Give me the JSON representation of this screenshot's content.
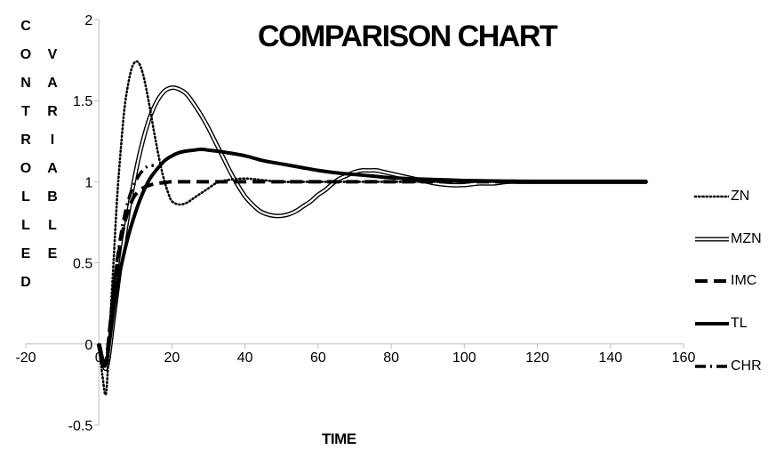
{
  "chart_data": {
    "type": "line",
    "title": "COMPARISON CHART",
    "xlabel": "TIME",
    "ylabel_parts": [
      "CONTROLLED",
      "VARIABLE"
    ],
    "xlim": [
      -20,
      160
    ],
    "ylim": [
      -0.5,
      2
    ],
    "x_ticks": [
      "-20",
      "0",
      "20",
      "40",
      "60",
      "80",
      "100",
      "120",
      "140",
      "160"
    ],
    "y_ticks": [
      "-0.5",
      "0",
      "0.5",
      "1",
      "1.5",
      "2"
    ],
    "grid": false,
    "legend_position": "right",
    "series": [
      {
        "name": "ZN",
        "style": "dotted",
        "x": [
          0,
          1,
          2,
          3,
          4,
          5,
          6,
          7,
          8,
          9,
          10,
          11,
          12,
          13,
          14,
          15,
          16,
          17,
          18,
          19,
          20,
          22,
          24,
          26,
          28,
          30,
          32,
          35,
          40,
          45,
          50,
          60,
          70,
          80,
          90,
          100,
          110,
          120,
          130,
          140,
          150
        ],
        "y": [
          0,
          -0.2,
          -0.3,
          0.1,
          0.5,
          0.9,
          1.2,
          1.45,
          1.6,
          1.7,
          1.74,
          1.73,
          1.67,
          1.57,
          1.45,
          1.32,
          1.2,
          1.09,
          1.0,
          0.93,
          0.88,
          0.86,
          0.87,
          0.9,
          0.93,
          0.96,
          0.99,
          1.01,
          1.02,
          1.01,
          1.0,
          1.0,
          1.0,
          1.0,
          1.0,
          1.0,
          1.0,
          1.0,
          1.0,
          1.0,
          1.0
        ]
      },
      {
        "name": "MZN",
        "style": "double",
        "x": [
          0,
          2,
          4,
          6,
          8,
          10,
          12,
          14,
          16,
          18,
          20,
          22,
          24,
          26,
          28,
          30,
          32,
          34,
          36,
          38,
          40,
          42,
          44,
          46,
          48,
          50,
          52,
          54,
          56,
          58,
          60,
          62,
          64,
          66,
          68,
          70,
          72,
          74,
          76,
          78,
          80,
          84,
          88,
          92,
          96,
          100,
          104,
          108,
          112,
          116,
          120,
          125,
          130,
          140,
          150
        ],
        "y": [
          0,
          -0.15,
          0.15,
          0.5,
          0.8,
          1.05,
          1.25,
          1.4,
          1.5,
          1.56,
          1.58,
          1.57,
          1.54,
          1.48,
          1.41,
          1.33,
          1.24,
          1.15,
          1.06,
          0.98,
          0.91,
          0.86,
          0.82,
          0.8,
          0.79,
          0.79,
          0.8,
          0.82,
          0.85,
          0.88,
          0.92,
          0.95,
          0.99,
          1.02,
          1.04,
          1.06,
          1.07,
          1.07,
          1.07,
          1.06,
          1.05,
          1.03,
          1.01,
          0.99,
          0.98,
          0.98,
          0.99,
          0.99,
          1.0,
          1.0,
          1.0,
          1.0,
          1.0,
          1.0,
          1.0
        ]
      },
      {
        "name": "IMC",
        "style": "dashed",
        "x": [
          0,
          1,
          2,
          3,
          4,
          5,
          6,
          7,
          8,
          9,
          10,
          12,
          14,
          16,
          18,
          20,
          25,
          30,
          40,
          50,
          60,
          80,
          100,
          120,
          140,
          150
        ],
        "y": [
          0,
          -0.12,
          -0.1,
          0.1,
          0.32,
          0.5,
          0.63,
          0.74,
          0.82,
          0.88,
          0.92,
          0.96,
          0.98,
          0.99,
          0.995,
          1.0,
          1.0,
          1.0,
          1.0,
          1.0,
          1.0,
          1.0,
          1.0,
          1.0,
          1.0,
          1.0
        ]
      },
      {
        "name": "TL",
        "style": "solid",
        "x": [
          0,
          1,
          2,
          3,
          4,
          5,
          6,
          8,
          10,
          12,
          14,
          16,
          18,
          20,
          22,
          24,
          26,
          28,
          30,
          32,
          35,
          40,
          45,
          50,
          55,
          60,
          65,
          70,
          75,
          80,
          90,
          100,
          110,
          120,
          130,
          140,
          150
        ],
        "y": [
          0,
          -0.12,
          -0.12,
          0.03,
          0.2,
          0.35,
          0.47,
          0.66,
          0.81,
          0.93,
          1.02,
          1.08,
          1.13,
          1.16,
          1.18,
          1.19,
          1.195,
          1.2,
          1.195,
          1.19,
          1.18,
          1.16,
          1.13,
          1.11,
          1.09,
          1.07,
          1.055,
          1.045,
          1.035,
          1.025,
          1.015,
          1.008,
          1.004,
          1.002,
          1.001,
          1.0,
          1.0
        ]
      },
      {
        "name": "CHR",
        "style": "dashdot",
        "x": [
          0,
          1,
          2,
          3,
          4,
          5,
          6,
          7,
          8,
          9,
          10,
          11,
          12,
          13,
          14,
          15
        ],
        "y": [
          0,
          -0.12,
          -0.11,
          0.1,
          0.33,
          0.52,
          0.67,
          0.79,
          0.88,
          0.95,
          1.0,
          1.04,
          1.07,
          1.09,
          1.1,
          1.1
        ]
      }
    ]
  }
}
